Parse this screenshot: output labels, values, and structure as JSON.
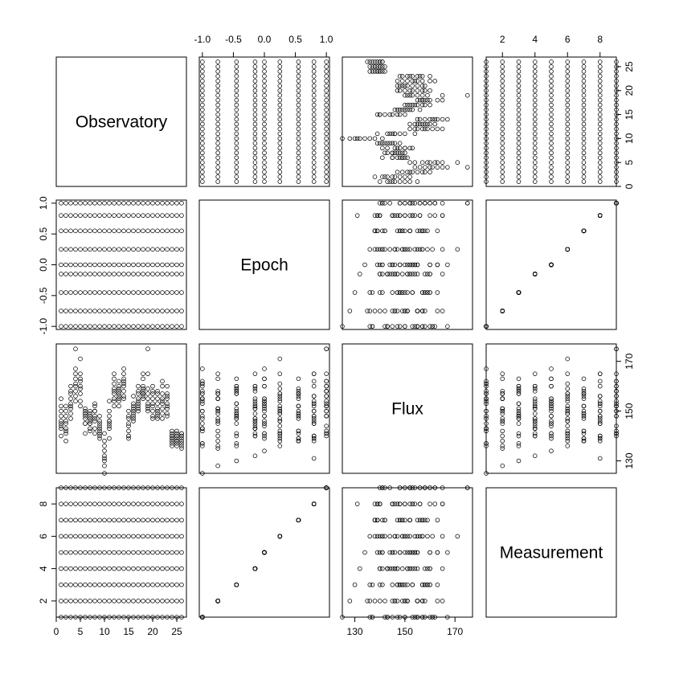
{
  "chart_data": {
    "type": "scatter",
    "subtype": "pairs-matrix",
    "variables": [
      "Observatory",
      "Epoch",
      "Flux",
      "Measurement"
    ],
    "ranges": {
      "Observatory": [
        0,
        27
      ],
      "Epoch": [
        -1.05,
        1.05
      ],
      "Flux": [
        125,
        177
      ],
      "Measurement": [
        1,
        9
      ]
    },
    "ticks": {
      "Observatory": [
        0,
        5,
        10,
        15,
        20,
        25
      ],
      "Epoch": [
        -1.0,
        -0.5,
        0.0,
        0.5,
        1.0
      ],
      "Flux": [
        130,
        150,
        170
      ],
      "Measurement": [
        2,
        4,
        6,
        8
      ]
    },
    "tick_labels": {
      "Observatory": [
        "0",
        "5",
        "10",
        "15",
        "20",
        "25"
      ],
      "Epoch": [
        "-1.0",
        "-0.5",
        "0.0",
        "0.5",
        "1.0"
      ],
      "Flux": [
        "130",
        "150",
        "170"
      ],
      "Measurement": [
        "2",
        "4",
        "6",
        "8"
      ]
    },
    "observatory_values": [
      1,
      2,
      3,
      4,
      5,
      6,
      7,
      8,
      9,
      10,
      11,
      12,
      13,
      14,
      15,
      16,
      17,
      18,
      19,
      20,
      21,
      22,
      23,
      24,
      25,
      26
    ],
    "measurement_levels": [
      1,
      2,
      3,
      4,
      5,
      6,
      7,
      8,
      9
    ],
    "epoch_by_measurement": [
      -1.0,
      -0.75,
      -0.45,
      -0.15,
      0.0,
      0.25,
      0.55,
      0.8,
      1.0
    ],
    "flux_by_observatory": [
      [
        155,
        150,
        145,
        143,
        148,
        146,
        152,
        140,
        144
      ],
      [
        150,
        146,
        148,
        143,
        145,
        141,
        142,
        138,
        152
      ],
      [
        160,
        158,
        153,
        149,
        155,
        151,
        157,
        147,
        152
      ],
      [
        167,
        165,
        163,
        158,
        160,
        161,
        156,
        154,
        175
      ],
      [
        162,
        157,
        159,
        152,
        154,
        171,
        163,
        165,
        160
      ],
      [
        145,
        149,
        147,
        151,
        141,
        149,
        148,
        145,
        150
      ],
      [
        143,
        147,
        149,
        145,
        150,
        146,
        142,
        145,
        148
      ],
      [
        143,
        146,
        148,
        147,
        152,
        150,
        141,
        150,
        153
      ],
      [
        143,
        142,
        141,
        146,
        144,
        140,
        139,
        145,
        148
      ],
      [
        125,
        128,
        130,
        132,
        134,
        136,
        138,
        131,
        141
      ],
      [
        150,
        145,
        148,
        143,
        146,
        144,
        139,
        146,
        154
      ],
      [
        161,
        157,
        158,
        154,
        163,
        159,
        155,
        152,
        165
      ],
      [
        158,
        155,
        157,
        159,
        160,
        154,
        152,
        162,
        156
      ],
      [
        161,
        163,
        160,
        165,
        167,
        155,
        158,
        156,
        162
      ],
      [
        142,
        140,
        147,
        144,
        145,
        139,
        148,
        140,
        150
      ],
      [
        147,
        151,
        150,
        146,
        148,
        152,
        149,
        153,
        156
      ],
      [
        154,
        151,
        158,
        153,
        155,
        157,
        152,
        150,
        160
      ],
      [
        157,
        155,
        159,
        160,
        163,
        165,
        157,
        156,
        158
      ],
      [
        153,
        155,
        157,
        152,
        151,
        150,
        159,
        165,
        175
      ],
      [
        148,
        150,
        153,
        155,
        152,
        147,
        157,
        160,
        158
      ],
      [
        155,
        151,
        149,
        147,
        153,
        157,
        150,
        148,
        158
      ],
      [
        155,
        157,
        160,
        151,
        154,
        149,
        147,
        153,
        162
      ],
      [
        157,
        155,
        151,
        160,
        153,
        156,
        149,
        148,
        152
      ],
      [
        137,
        136,
        140,
        141,
        139,
        142,
        138,
        139,
        140
      ],
      [
        136,
        138,
        137,
        140,
        141,
        138,
        139,
        140,
        142
      ],
      [
        137,
        135,
        136,
        140,
        140,
        141,
        138,
        139,
        141
      ]
    ]
  }
}
